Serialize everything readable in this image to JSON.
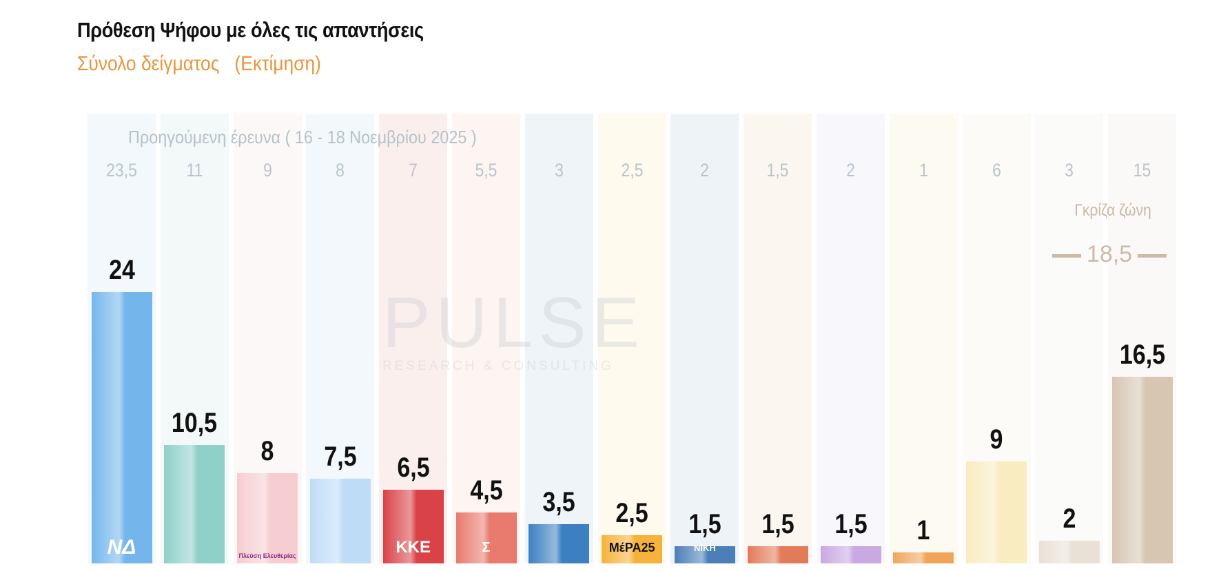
{
  "title": "Πρόθεση Ψήφου με όλες τις απαντήσεις",
  "subtitle": "Σύνολο δείγματος   (Εκτίμηση)",
  "previous_label": "Προηγούμενη έρευνα ( 16 - 18 Νοεμβρίου 2025 )",
  "grey_zone": {
    "label": "Γκρίζα ζώνη",
    "total": "18,5"
  },
  "watermark": {
    "brand": "PULSE",
    "tagline": "RESEARCH & CONSULTING"
  },
  "chart_data": {
    "type": "bar",
    "ylim": [
      0,
      25
    ],
    "grid": false,
    "value_labels": [
      "24",
      "10,5",
      "8",
      "7,5",
      "6,5",
      "4,5",
      "3,5",
      "2,5",
      "1,5",
      "1,5",
      "1,5",
      "1",
      "9",
      "2",
      "16,5"
    ],
    "values": [
      24,
      10.5,
      8,
      7.5,
      6.5,
      4.5,
      3.5,
      2.5,
      1.5,
      1.5,
      1.5,
      1,
      9,
      2,
      16.5
    ],
    "previous_labels": [
      "23,5",
      "11",
      "9",
      "8",
      "7",
      "5,5",
      "3",
      "2,5",
      "2",
      "1,5",
      "2",
      "1",
      "6",
      "3",
      "15"
    ],
    "previous_values": [
      23.5,
      11,
      9,
      8,
      7,
      5.5,
      3,
      2.5,
      2,
      1.5,
      2,
      1,
      6,
      3,
      15
    ],
    "logos": [
      "ΝΔ",
      "",
      "Πλεύση Ελευθερίας",
      "",
      "ΚΚΕ",
      "Σ",
      "",
      "ΜέΡΑ25",
      "ΝΙΚΗ",
      "",
      "",
      "",
      "",
      "",
      ""
    ],
    "bar_colors": [
      "#74b6ec",
      "#8fd0c9",
      "#f6cdd1",
      "#bedcf6",
      "#d94347",
      "#e87a6e",
      "#3c80c2",
      "#f6b23a",
      "#4b7fb7",
      "#e37a58",
      "#c8a9e2",
      "#f0a55a",
      "#f9ecc0",
      "#e9e1d5",
      "#d6c6b2"
    ],
    "column_tints": [
      "#f3f8fc",
      "#f3f8f8",
      "#fdf8f8",
      "#f3f8fc",
      "#fbefee",
      "#fcf5f2",
      "#eff4f8",
      "#fefaee",
      "#eef3f7",
      "#fcf6f1",
      "#f8f7fb",
      "#fdfaf2",
      "#fcfbf7",
      "#fbfbfa",
      "#fbf9f7"
    ]
  }
}
